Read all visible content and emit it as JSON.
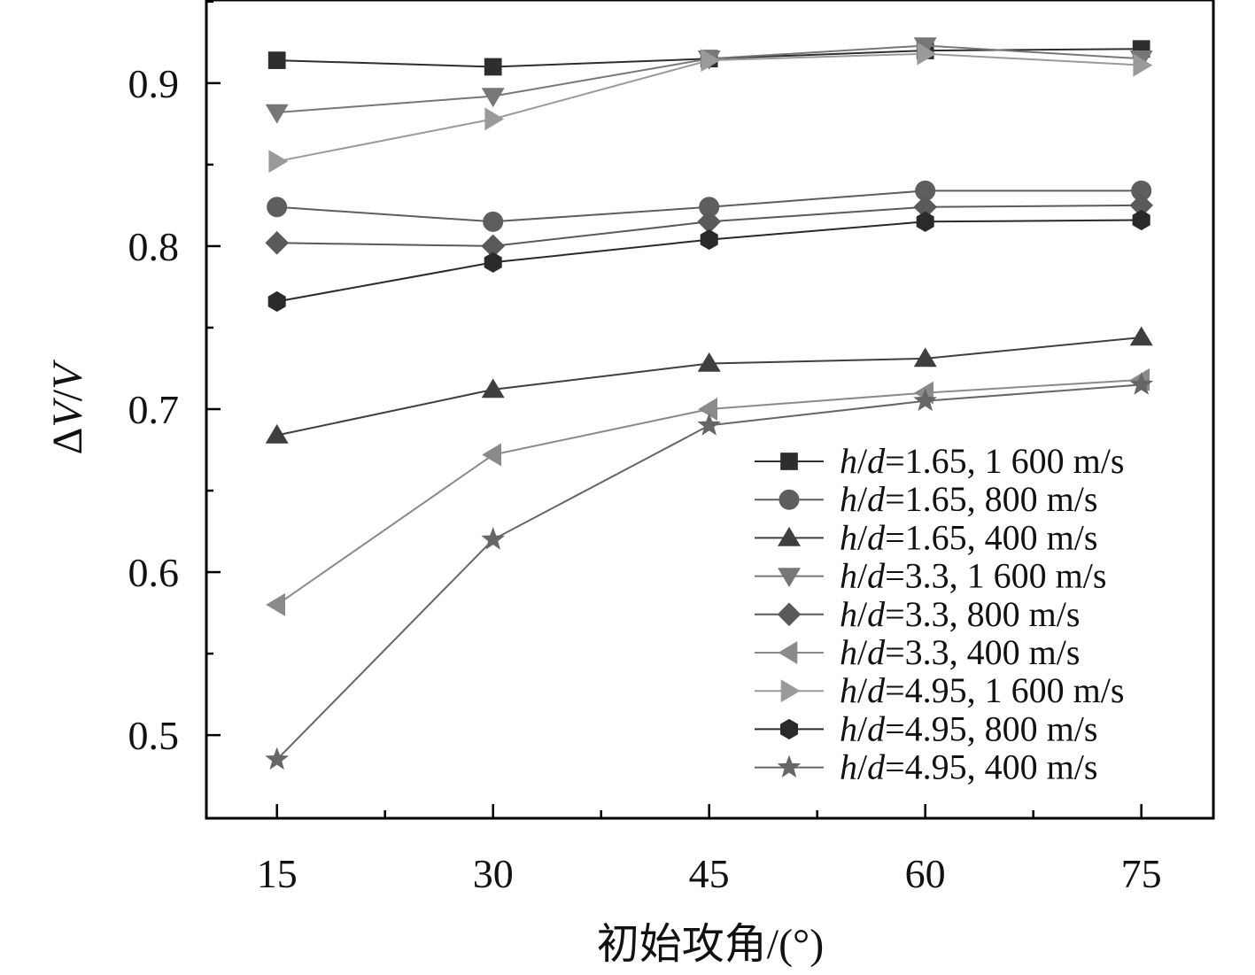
{
  "chart_data": {
    "type": "line",
    "title": "",
    "xlabel": "初始攻角/(°)",
    "ylabel_delta": "Δ",
    "ylabel_v1": "V",
    "ylabel_slash": "/",
    "ylabel_v2": "V",
    "x": [
      15,
      30,
      45,
      60,
      75
    ],
    "x_tick_labels": [
      "15",
      "30",
      "45",
      "60",
      "75"
    ],
    "y_ticks": [
      0.5,
      0.6,
      0.7,
      0.8,
      0.9
    ],
    "y_tick_labels": [
      "0.5",
      "0.6",
      "0.7",
      "0.8",
      "0.9"
    ],
    "xlim": [
      10.1,
      80
    ],
    "ylim": [
      0.449,
      0.951
    ],
    "grid": false,
    "legend_position": "bottom-right",
    "legend_h": "h",
    "legend_slash": "/",
    "legend_d": "d",
    "series": [
      {
        "name": "h/d=1.65, 1 600 m/s",
        "rest": "=1.65, 1 600 m/s",
        "marker": "square",
        "color": "#2e2e2e",
        "values": [
          0.914,
          0.91,
          0.915,
          0.92,
          0.921
        ]
      },
      {
        "name": "h/d=1.65, 800 m/s",
        "rest": "=1.65, 800 m/s",
        "marker": "circle",
        "color": "#5e5e5e",
        "values": [
          0.824,
          0.815,
          0.824,
          0.834,
          0.834
        ]
      },
      {
        "name": "h/d=1.65, 400 m/s",
        "rest": "=1.65, 400 m/s",
        "marker": "triangle-up",
        "color": "#3f3f3f",
        "values": [
          0.684,
          0.712,
          0.728,
          0.731,
          0.744
        ]
      },
      {
        "name": "h/d=3.3, 1 600 m/s",
        "rest": "=3.3, 1 600 m/s",
        "marker": "triangle-down",
        "color": "#777777",
        "values": [
          0.882,
          0.892,
          0.915,
          0.923,
          0.915
        ]
      },
      {
        "name": "h/d=3.3, 800 m/s",
        "rest": "=3.3, 800 m/s",
        "marker": "diamond",
        "color": "#5a5a5a",
        "values": [
          0.802,
          0.8,
          0.815,
          0.824,
          0.825
        ]
      },
      {
        "name": "h/d=3.3, 400 m/s",
        "rest": "=3.3, 400 m/s",
        "marker": "triangle-left",
        "color": "#8a8a8a",
        "values": [
          0.58,
          0.672,
          0.7,
          0.71,
          0.718
        ]
      },
      {
        "name": "h/d=4.95, 1 600 m/s",
        "rest": "=4.95, 1 600 m/s",
        "marker": "triangle-right",
        "color": "#9a9a9a",
        "values": [
          0.852,
          0.878,
          0.914,
          0.918,
          0.911
        ]
      },
      {
        "name": "h/d=4.95, 800 m/s",
        "rest": "=4.95, 800 m/s",
        "marker": "hexagon",
        "color": "#2a2a2a",
        "values": [
          0.766,
          0.79,
          0.804,
          0.815,
          0.816
        ]
      },
      {
        "name": "h/d=4.95, 400 m/s",
        "rest": "=4.95, 400 m/s",
        "marker": "star",
        "color": "#666666",
        "values": [
          0.485,
          0.62,
          0.69,
          0.705,
          0.715
        ]
      }
    ]
  }
}
